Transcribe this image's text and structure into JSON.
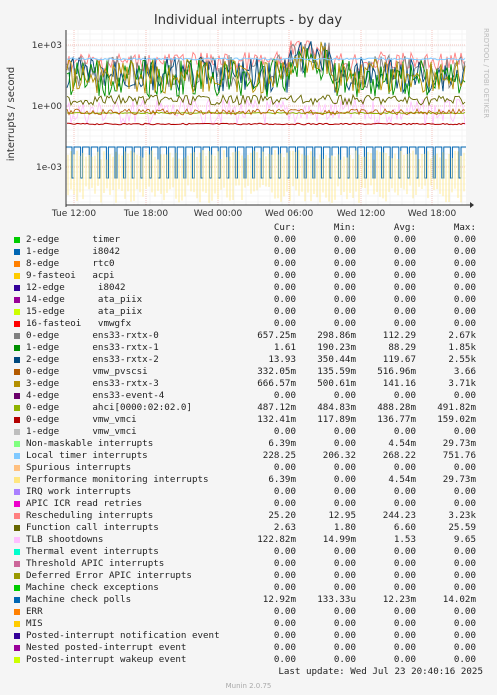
{
  "chart_data": {
    "type": "line",
    "title": "Individual interrupts - by day",
    "ylabel": "interrupts / second",
    "y_scale": "log",
    "y_ticks": [
      "1e+03",
      "1e+00",
      "1e-03"
    ],
    "x_ticks": [
      "Tue 12:00",
      "Tue 18:00",
      "Wed 00:00",
      "Wed 06:00",
      "Wed 12:00",
      "Wed 18:00"
    ],
    "grid": true,
    "watermark": "RRDTOOL / TOBI OETIKER",
    "columns": [
      "Cur:",
      "Min:",
      "Avg:",
      "Max:"
    ],
    "series": [
      {
        "name": "2-edge      timer",
        "color": "#00cc00",
        "cur": "0.00",
        "min": "0.00",
        "avg": "0.00",
        "max": "0.00"
      },
      {
        "name": "1-edge      i8042",
        "color": "#0066b3",
        "cur": "0.00",
        "min": "0.00",
        "avg": "0.00",
        "max": "0.00"
      },
      {
        "name": "8-edge      rtc0",
        "color": "#ff8000",
        "cur": "0.00",
        "min": "0.00",
        "avg": "0.00",
        "max": "0.00"
      },
      {
        "name": "9-fasteoi   acpi",
        "color": "#ffcc00",
        "cur": "0.00",
        "min": "0.00",
        "avg": "0.00",
        "max": "0.00"
      },
      {
        "name": "12-edge      i8042",
        "color": "#330099",
        "cur": "0.00",
        "min": "0.00",
        "avg": "0.00",
        "max": "0.00"
      },
      {
        "name": "14-edge      ata_piix",
        "color": "#990099",
        "cur": "0.00",
        "min": "0.00",
        "avg": "0.00",
        "max": "0.00"
      },
      {
        "name": "15-edge      ata_piix",
        "color": "#ccff00",
        "cur": "0.00",
        "min": "0.00",
        "avg": "0.00",
        "max": "0.00"
      },
      {
        "name": "16-fasteoi   vmwgfx",
        "color": "#ff0000",
        "cur": "0.00",
        "min": "0.00",
        "avg": "0.00",
        "max": "0.00"
      },
      {
        "name": "0-edge      ens33-rxtx-0",
        "color": "#808080",
        "cur": "657.25m",
        "min": "298.86m",
        "avg": "112.29",
        "max": "2.67k"
      },
      {
        "name": "1-edge      ens33-rxtx-1",
        "color": "#008f00",
        "cur": "1.61",
        "min": "190.23m",
        "avg": "88.29",
        "max": "1.85k"
      },
      {
        "name": "2-edge      ens33-rxtx-2",
        "color": "#00487d",
        "cur": "13.93",
        "min": "350.44m",
        "avg": "119.67",
        "max": "2.55k"
      },
      {
        "name": "0-edge      vmw_pvscsi",
        "color": "#b35a00",
        "cur": "332.05m",
        "min": "135.59m",
        "avg": "516.96m",
        "max": "3.66"
      },
      {
        "name": "3-edge      ens33-rxtx-3",
        "color": "#b38f00",
        "cur": "666.57m",
        "min": "500.61m",
        "avg": "141.16",
        "max": "3.71k"
      },
      {
        "name": "4-edge      ens33-event-4",
        "color": "#6b006b",
        "cur": "0.00",
        "min": "0.00",
        "avg": "0.00",
        "max": "0.00"
      },
      {
        "name": "0-edge      ahci[0000:02:02.0]",
        "color": "#8fb300",
        "cur": "487.12m",
        "min": "484.83m",
        "avg": "488.28m",
        "max": "491.82m"
      },
      {
        "name": "0-edge      vmw_vmci",
        "color": "#b30000",
        "cur": "132.41m",
        "min": "117.89m",
        "avg": "136.77m",
        "max": "159.02m"
      },
      {
        "name": "1-edge      vmw_vmci",
        "color": "#bebebe",
        "cur": "0.00",
        "min": "0.00",
        "avg": "0.00",
        "max": "0.00"
      },
      {
        "name": "Non-maskable interrupts",
        "color": "#80ff80",
        "cur": "6.39m",
        "min": "0.00",
        "avg": "4.54m",
        "max": "29.73m"
      },
      {
        "name": "Local timer interrupts",
        "color": "#80c9ff",
        "cur": "228.25",
        "min": "206.32",
        "avg": "268.22",
        "max": "751.76"
      },
      {
        "name": "Spurious interrupts",
        "color": "#ffc080",
        "cur": "0.00",
        "min": "0.00",
        "avg": "0.00",
        "max": "0.00"
      },
      {
        "name": "Performance monitoring interrupts",
        "color": "#ffe680",
        "cur": "6.39m",
        "min": "0.00",
        "avg": "4.54m",
        "max": "29.73m"
      },
      {
        "name": "IRQ work interrupts",
        "color": "#aa80ff",
        "cur": "0.00",
        "min": "0.00",
        "avg": "0.00",
        "max": "0.00"
      },
      {
        "name": "APIC ICR read retries",
        "color": "#ee00cc",
        "cur": "0.00",
        "min": "0.00",
        "avg": "0.00",
        "max": "0.00"
      },
      {
        "name": "Rescheduling interrupts",
        "color": "#ff8080",
        "cur": "25.20",
        "min": "12.95",
        "avg": "244.23",
        "max": "3.23k"
      },
      {
        "name": "Function call interrupts",
        "color": "#666600",
        "cur": "2.63",
        "min": "1.80",
        "avg": "6.60",
        "max": "25.59"
      },
      {
        "name": "TLB shootdowns",
        "color": "#ffbfff",
        "cur": "122.82m",
        "min": "14.99m",
        "avg": "1.53",
        "max": "9.65"
      },
      {
        "name": "Thermal event interrupts",
        "color": "#00ffcc",
        "cur": "0.00",
        "min": "0.00",
        "avg": "0.00",
        "max": "0.00"
      },
      {
        "name": "Threshold APIC interrupts",
        "color": "#cc6699",
        "cur": "0.00",
        "min": "0.00",
        "avg": "0.00",
        "max": "0.00"
      },
      {
        "name": "Deferred Error APIC interrupts",
        "color": "#999900",
        "cur": "0.00",
        "min": "0.00",
        "avg": "0.00",
        "max": "0.00"
      },
      {
        "name": "Machine check exceptions",
        "color": "#00cc00",
        "cur": "0.00",
        "min": "0.00",
        "avg": "0.00",
        "max": "0.00"
      },
      {
        "name": "Machine check polls",
        "color": "#0066b3",
        "cur": "12.92m",
        "min": "133.33u",
        "avg": "12.23m",
        "max": "14.02m"
      },
      {
        "name": "ERR",
        "color": "#ff8000",
        "cur": "0.00",
        "min": "0.00",
        "avg": "0.00",
        "max": "0.00"
      },
      {
        "name": "MIS",
        "color": "#ffcc00",
        "cur": "0.00",
        "min": "0.00",
        "avg": "0.00",
        "max": "0.00"
      },
      {
        "name": "Posted-interrupt notification event",
        "color": "#330099",
        "cur": "0.00",
        "min": "0.00",
        "avg": "0.00",
        "max": "0.00"
      },
      {
        "name": "Nested posted-interrupt event",
        "color": "#990099",
        "cur": "0.00",
        "min": "0.00",
        "avg": "0.00",
        "max": "0.00"
      },
      {
        "name": "Posted-interrupt wakeup event",
        "color": "#ccff00",
        "cur": "0.00",
        "min": "0.00",
        "avg": "0.00",
        "max": "0.00"
      }
    ]
  },
  "footer": {
    "last_update": "Last update: Wed Jul 23 20:40:16 2025",
    "munin": "Munin 2.0.75"
  }
}
